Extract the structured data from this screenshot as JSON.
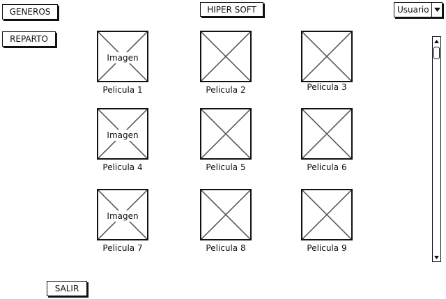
{
  "nav": {
    "generos_label": "GENEROS",
    "reparto_label": "REPARTO",
    "salir_label": "SALIR"
  },
  "header": {
    "title": "HIPER SOFT",
    "user_select_value": "Usuario"
  },
  "movies": [
    {
      "label": "Pelicula 1",
      "image_text": "Imagen"
    },
    {
      "label": "Pelicula 2"
    },
    {
      "label": "Pelicula 3"
    },
    {
      "label": "Pelicula 4",
      "image_text": "Imagen"
    },
    {
      "label": "Pelicula 5"
    },
    {
      "label": "Pelicula 6"
    },
    {
      "label": "Pelicula 7",
      "image_text": "Imagen"
    },
    {
      "label": "Pelicula 8"
    },
    {
      "label": "Pelicula 9"
    }
  ],
  "icons": {
    "caret": "chevron-down-icon",
    "scroll_up": "arrow-up-icon",
    "scroll_down": "arrow-down-icon",
    "placeholder": "image-placeholder-icon"
  }
}
